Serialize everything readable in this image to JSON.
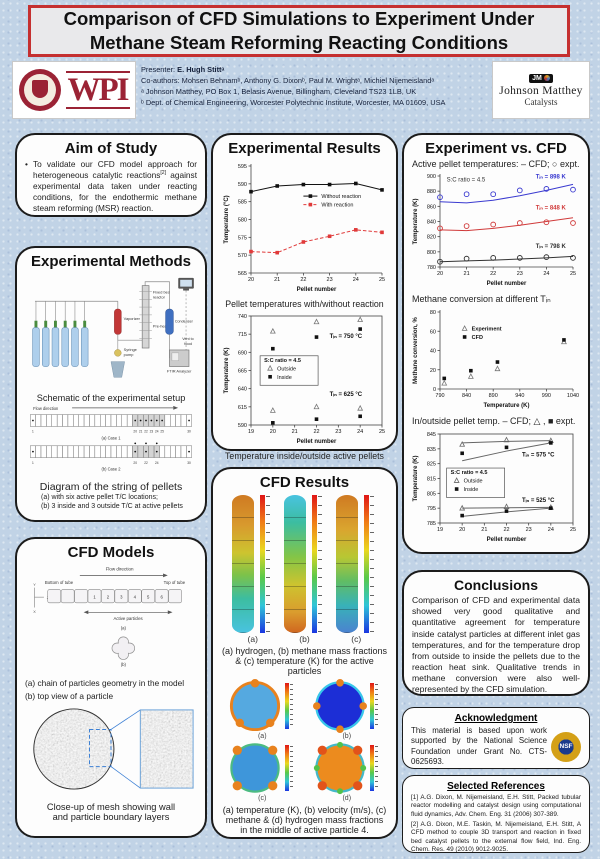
{
  "title": "Comparison of CFD Simulations to Experiment Under Methane Steam Reforming Reacting Conditions",
  "header": {
    "presenter_label": "Presenter:",
    "presenter_name": "E. Hugh Stittᵃ",
    "coauthors": "Co-authors: Mohsen Behnamᵇ, Anthony G. Dixonᵇ, Paul M. Wrightᵃ, Michiel Nijemeislandᵃ",
    "affiliation_a": "ᵃ Johnson Matthey, PO Box 1, Belasis Avenue, Billingham, Cleveland TS23 1LB, UK",
    "affiliation_b": "ᵇ Dept. of Chemical Engineering, Worcester Polytechnic Institute, Worcester, MA 01609, USA"
  },
  "logos": {
    "wpi_wordmark": "WPI",
    "jm_badge": "JM",
    "jm_name": "Johnson Matthey",
    "jm_sub": "Catalysts",
    "nsf": "NSF"
  },
  "aim": {
    "title": "Aim of Study",
    "body_1": "To validate our CFD model approach for heterogeneous catalytic reactions",
    "body_sup": "[2]",
    "body_2": " against experimental data taken under reacting conditions, for the endothermic methane steam reforming (MSR) reaction."
  },
  "methods": {
    "title": "Experimental Methods",
    "schematic": {
      "vaporizer": "Vaporizer",
      "syringe": "Syringe pump",
      "fixed_bed": "Fixed bed reactor",
      "preheater": "Pre-heater",
      "condenser": "Condenser",
      "ftir": "FTIR Analyzer",
      "vent": "Vent to hood"
    },
    "schematic_caption": "Schematic of the experimental setup",
    "pellets": {
      "flow_label": "Flow direction",
      "cells": 30,
      "rows": [
        {
          "label": "(a) Case 1",
          "shaded": [
            20,
            21,
            22,
            23,
            24,
            25
          ],
          "dots": [
            1,
            20,
            21,
            22,
            23,
            24,
            25,
            30
          ],
          "dots_above": [],
          "ticks": [
            1,
            20,
            21,
            22,
            23,
            24,
            25,
            30
          ]
        },
        {
          "label": "(b) Case 2",
          "shaded": [
            20,
            21,
            22,
            23,
            24
          ],
          "dots": [
            1,
            20,
            22,
            24,
            30
          ],
          "dots_above": [
            20,
            22,
            24
          ],
          "ticks": [
            1,
            20,
            22,
            24,
            30
          ]
        }
      ]
    },
    "pellet_caption_title": "Diagram of the string of pellets",
    "pellet_caption_a": "(a)   with six active pellet T/C locations;",
    "pellet_caption_b": "(b)   3 inside and 3 outside T/C at active pellets"
  },
  "cfd_models": {
    "title": "CFD Models",
    "flow_label": "Flow direction",
    "bottom_label": "Bottom of tube",
    "top_label": "Top of tube",
    "active_label": "Active particles",
    "numbers": [
      "1",
      "2",
      "3",
      "4",
      "5",
      "6"
    ],
    "axes": [
      "Y",
      "Z",
      "X"
    ],
    "sub_a": "(a)",
    "sub_b": "(b)",
    "caption_a": "(a) chain of particles geometry in the model",
    "caption_b": "(b) top view of a particle",
    "mesh_caption_1": "Close-up of mesh showing wall",
    "mesh_caption_2": "and particle boundary layers"
  },
  "exp_results": {
    "title": "Experimental Results",
    "caption_1": "Pellet temperatures with/without reaction",
    "caption_2": "Temperature inside/outside active pellets"
  },
  "cfd_results": {
    "title": "CFD Results",
    "col_labels": [
      "(a)",
      "(b)",
      "(c)"
    ],
    "caption_1": "(a) hydrogen, (b) methane mass fractions & (c) temperature (K) for the active particles",
    "circle_labels": [
      "(a)",
      "(b)",
      "(c)",
      "(d)"
    ],
    "caption_2": "(a) temperature (K), (b) velocity (m/s), (c) methane & (d) hydrogen mass fractions in the middle of active particle 4."
  },
  "evc": {
    "title": "Experiment vs. CFD",
    "sub_1": "Active pellet temperatures: – CFD; ○ expt.",
    "sub_2": "Methane conversion at different Tᵢₙ",
    "sub_3": "In/outside pellet temp. – CFD; △ , ■ expt."
  },
  "conclusions": {
    "title": "Conclusions",
    "body": "Comparison of CFD and experimental data showed very good qualitative and quantitative agreement for temperature inside catalyst particles at different inlet gas temperatures, and for the temperature drop from outside to inside the pellets due to the reaction heat sink. Qualitative trends in methane conversion were also well-represented by the CFD simulation."
  },
  "ack": {
    "title": "Acknowledgment",
    "body": "This material is based upon work supported by the National Science Foundation under Grant No. CTS-0625693."
  },
  "refs": {
    "title": "Selected References",
    "items": [
      "[1] A.G. Dixon, M. Nijemeisland, E.H. Stitt, Packed tubular reactor modelling and catalyst design using computational fluid dynamics, Adv. Chem. Eng. 31 (2006) 307-389.",
      "[2] A.G. Dixon, M.E. Taskin, M. Nijemeisland, E.H. Stitt, A CFD method to couple 3D transport and reaction in fixed bed catalyst pellets to the external flow field, Ind. Eng. Chem. Res. 49 (2010) 9012-9025."
    ]
  },
  "palette": {
    "poster_bg": "#c1d3e6",
    "title_border_red": "#c53030",
    "wpi_crimson": "#9b2335",
    "contour_hot": "#cf7a22",
    "contour_cold": "#49c3e0",
    "series_blue": "#3a3ad0",
    "series_red": "#d03a3a",
    "series_black": "#333333"
  },
  "chart_data": [
    {
      "id": "pellet_temps",
      "type": "line",
      "frame": false,
      "title": "Pellet temperatures with/without reaction",
      "xlabel": "Pellet number",
      "ylabel": "Temperature (°C)",
      "xlim": [
        20,
        25
      ],
      "ylim": [
        565,
        595
      ],
      "xticks": [
        20,
        21,
        22,
        23,
        24,
        25
      ],
      "yticks": [
        565,
        570,
        575,
        580,
        585,
        590,
        595
      ],
      "series": [
        {
          "name": "Without reaction",
          "line": true,
          "dash": false,
          "marker": "square",
          "color": "#111111",
          "x": [
            20,
            21,
            22,
            23,
            24,
            25
          ],
          "y": [
            587.8,
            589.4,
            589.8,
            589.8,
            590.1,
            588.3
          ]
        },
        {
          "name": "With reaction",
          "line": true,
          "dash": true,
          "marker": "square",
          "color": "#e03a3a",
          "x": [
            20,
            21,
            22,
            23,
            24,
            25
          ],
          "y": [
            571.0,
            570.7,
            573.7,
            575.3,
            577.1,
            576.4
          ]
        }
      ],
      "legend": {
        "fx": 0.4,
        "fy": 0.3,
        "box": false,
        "items": [
          {
            "label": "Without reaction",
            "line": true,
            "dash": false,
            "marker": "square",
            "color": "#111111"
          },
          {
            "label": "With reaction",
            "line": true,
            "dash": true,
            "marker": "square",
            "color": "#e03a3a"
          }
        ]
      }
    },
    {
      "id": "inout_exp",
      "type": "scatter",
      "frame": true,
      "title": "Temperature inside/outside active pellets",
      "xlabel": "Pellet number",
      "ylabel": "Temperature (K)",
      "xlim": [
        19,
        25
      ],
      "ylim": [
        590,
        740
      ],
      "xticks": [
        19,
        20,
        21,
        22,
        23,
        24,
        25
      ],
      "yticks": [
        590,
        615,
        640,
        665,
        690,
        715,
        740
      ],
      "series": [
        {
          "name": "Outside, Tin 750 °C",
          "marker": "triangle-open",
          "color": "#777777",
          "x": [
            20,
            22,
            24
          ],
          "y": [
            719,
            732,
            735
          ]
        },
        {
          "name": "Inside, Tin 750 °C",
          "marker": "square",
          "color": "#111111",
          "x": [
            20,
            22,
            24
          ],
          "y": [
            695,
            711,
            722
          ]
        },
        {
          "name": "Outside, Tin 625 °C",
          "marker": "triangle-open",
          "color": "#777777",
          "x": [
            20,
            22,
            24
          ],
          "y": [
            610,
            615,
            613
          ]
        },
        {
          "name": "Inside, Tin 625 °C",
          "marker": "square",
          "color": "#111111",
          "x": [
            20,
            22,
            24
          ],
          "y": [
            593,
            598,
            602
          ]
        }
      ],
      "annotations": [
        {
          "text": "Tᵢₙ = 750 °C",
          "x": 22.6,
          "y": 710,
          "color": "#111111"
        },
        {
          "text": "Tᵢₙ = 625 °C",
          "x": 22.6,
          "y": 630,
          "color": "#111111"
        }
      ],
      "legend": {
        "fx": 0.1,
        "fy": 0.42,
        "box": true,
        "w": 58,
        "title": "S:C ratio = 4.5",
        "items": [
          {
            "label": "Outside",
            "marker": "triangle-open",
            "color": "#777777"
          },
          {
            "label": "Inside",
            "marker": "square",
            "color": "#111111"
          }
        ]
      }
    },
    {
      "id": "active_cfd",
      "type": "line",
      "frame": false,
      "title": "Active pellet temperatures: – CFD; ○ expt.",
      "xlabel": "Pellet number",
      "ylabel": "Temperature (K)",
      "xlim": [
        20,
        25
      ],
      "ylim": [
        780,
        900
      ],
      "xticks": [
        20,
        21,
        22,
        23,
        24,
        25
      ],
      "yticks": [
        780,
        800,
        820,
        840,
        860,
        880,
        900
      ],
      "series": [
        {
          "name": "CFD Tin = 898 K",
          "line": true,
          "color": "#3a3ad0",
          "x": [
            20,
            21,
            22,
            23,
            24,
            25
          ],
          "y": [
            866,
            864.5,
            868,
            874,
            881,
            889
          ]
        },
        {
          "name": "expt Tin = 898 K",
          "marker": "circle-open",
          "color": "#3a3ad0",
          "x": [
            20,
            21,
            22,
            23,
            24,
            25
          ],
          "y": [
            872,
            876,
            876,
            881,
            883,
            882
          ]
        },
        {
          "name": "CFD Tin = 848 K",
          "line": true,
          "color": "#d03a3a",
          "x": [
            20,
            21,
            22,
            23,
            24,
            25
          ],
          "y": [
            829,
            828,
            831,
            835,
            840,
            845
          ]
        },
        {
          "name": "expt Tin = 848 K",
          "marker": "circle-open",
          "color": "#d03a3a",
          "x": [
            20,
            21,
            22,
            23,
            24,
            25
          ],
          "y": [
            831,
            834,
            836,
            838,
            839,
            838
          ]
        },
        {
          "name": "CFD Tin = 798 K",
          "line": true,
          "color": "#333333",
          "x": [
            20,
            21,
            22,
            23,
            24,
            25
          ],
          "y": [
            787,
            788,
            789,
            790.5,
            792,
            794
          ]
        },
        {
          "name": "expt Tin = 798 K",
          "marker": "circle-open",
          "color": "#333333",
          "x": [
            20,
            21,
            22,
            23,
            24,
            25
          ],
          "y": [
            787,
            791,
            792,
            792,
            793,
            792
          ]
        }
      ],
      "annotations": [
        {
          "text": "S:C ratio = 4.5",
          "x": 20.25,
          "y": 893,
          "color": "#333333",
          "bold": false
        },
        {
          "text": "Tᵢₙ = 898 K",
          "x": 23.6,
          "y": 897,
          "color": "#3a3ad0"
        },
        {
          "text": "Tᵢₙ = 848 K",
          "x": 23.6,
          "y": 856,
          "color": "#d03a3a"
        },
        {
          "text": "Tᵢₙ = 798 K",
          "x": 23.6,
          "y": 805,
          "color": "#333333"
        }
      ]
    },
    {
      "id": "conversion",
      "type": "scatter",
      "frame": false,
      "title": "Methane conversion at different Tin",
      "xlabel": "Temperature (K)",
      "ylabel": "Methane conversion, %",
      "xlim": [
        790,
        1040
      ],
      "ylim": [
        0,
        80
      ],
      "xticks": [
        790,
        840,
        890,
        940,
        990,
        1040
      ],
      "yticks": [
        0,
        20,
        40,
        60,
        80
      ],
      "series": [
        {
          "name": "Experiment",
          "marker": "triangle-open",
          "color": "#777777",
          "x": [
            798,
            848,
            898,
            1023
          ],
          "y": [
            6,
            13,
            21,
            49
          ]
        },
        {
          "name": "CFD",
          "marker": "square",
          "color": "#111111",
          "x": [
            798,
            848,
            898,
            1023
          ],
          "y": [
            11,
            19,
            28,
            51
          ]
        }
      ],
      "legend": {
        "fx": 0.14,
        "fy": 0.24,
        "box": false,
        "bold": true,
        "items": [
          {
            "label": "Experiment",
            "marker": "triangle-open",
            "color": "#777777"
          },
          {
            "label": "CFD",
            "marker": "square",
            "color": "#111111"
          }
        ]
      }
    },
    {
      "id": "inout_cfd",
      "type": "line",
      "frame": true,
      "title": "In/outside pellet temp. – CFD; △, ■ expt.",
      "xlabel": "Pellet number",
      "ylabel": "Temperature (K)",
      "xlim": [
        19,
        25
      ],
      "ylim": [
        785,
        845
      ],
      "xticks": [
        19,
        20,
        21,
        22,
        23,
        24,
        25
      ],
      "yticks": [
        785,
        795,
        805,
        815,
        825,
        835,
        845
      ],
      "series": [
        {
          "name": "CFD outside, Tin 575 °C",
          "line": true,
          "color": "#666666",
          "x": [
            20,
            22,
            24
          ],
          "y": [
            839,
            840,
            840.5
          ]
        },
        {
          "name": "CFD inside, Tin 575 °C",
          "line": true,
          "color": "#666666",
          "x": [
            20,
            22,
            24
          ],
          "y": [
            827,
            833.5,
            839
          ]
        },
        {
          "name": "expt outside, Tin 575 °C",
          "marker": "triangle-open",
          "color": "#666666",
          "x": [
            20,
            22,
            24
          ],
          "y": [
            838,
            841,
            840.5
          ]
        },
        {
          "name": "expt inside, Tin 575 °C",
          "marker": "square",
          "color": "#111111",
          "x": [
            20,
            22,
            24
          ],
          "y": [
            832,
            836,
            839
          ]
        },
        {
          "name": "CFD outside, Tin 525 °C",
          "line": true,
          "color": "#666666",
          "x": [
            20,
            22,
            24
          ],
          "y": [
            795,
            795.3,
            795.5
          ]
        },
        {
          "name": "CFD inside, Tin 525 °C",
          "line": true,
          "color": "#666666",
          "x": [
            20,
            22,
            24
          ],
          "y": [
            789.5,
            792.5,
            795
          ]
        },
        {
          "name": "expt outside, Tin 525 °C",
          "marker": "triangle-open",
          "color": "#666666",
          "x": [
            20,
            22,
            24
          ],
          "y": [
            795,
            796,
            795.5
          ]
        },
        {
          "name": "expt inside, Tin 525 °C",
          "marker": "square",
          "color": "#111111",
          "x": [
            20,
            22,
            24
          ],
          "y": [
            790,
            793,
            795
          ]
        }
      ],
      "annotations": [
        {
          "text": "Tᵢₙ = 575 °C",
          "x": 22.7,
          "y": 830,
          "color": "#111111"
        },
        {
          "text": "Tᵢₙ = 525 °C",
          "x": 22.7,
          "y": 799,
          "color": "#111111"
        }
      ],
      "legend": {
        "fx": 0.08,
        "fy": 0.45,
        "box": true,
        "w": 58,
        "title": "S:C ratio = 4.5",
        "items": [
          {
            "label": "Outside",
            "marker": "triangle-open",
            "color": "#666666"
          },
          {
            "label": "Inside",
            "marker": "square",
            "color": "#111111"
          }
        ]
      }
    }
  ]
}
